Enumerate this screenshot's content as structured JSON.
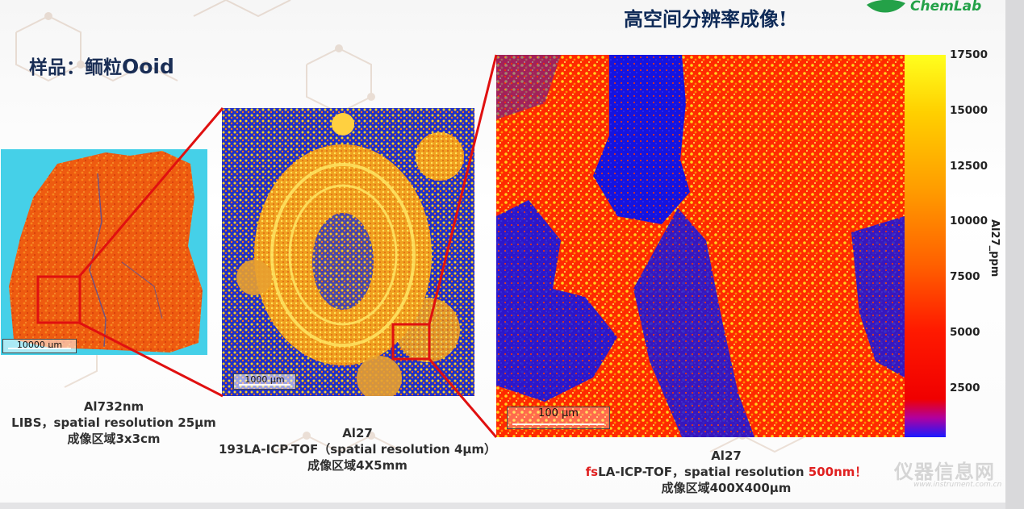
{
  "slide": {
    "title": "高空间分辨率成像!",
    "logo_text": "ChemLab",
    "sample_label_cn": "样品：鲕粒",
    "sample_label_en": "Ooid"
  },
  "panels": [
    {
      "scale_label": "10000 µm",
      "caption_lines": [
        "Al732nm",
        "LIBS，spatial resolution 25µm",
        "成像区域3x3cm"
      ]
    },
    {
      "scale_label": "1000 µm",
      "caption_lines": [
        "Al27",
        "193LA-ICP-TOF（spatial resolution 4µm）",
        "成像区域4X5mm"
      ]
    },
    {
      "scale_label": "100 µm",
      "caption_title": "Al27",
      "caption_prefix_red": "fs",
      "caption_middle": "LA-ICP-TOF，spatial resolution ",
      "caption_value_red": "500nm！",
      "caption_line3": "成像区域400X400µm"
    }
  ],
  "colorbar": {
    "label": "Al27_ppm",
    "ticks": [
      "17500",
      "15000",
      "12500",
      "10000",
      "7500",
      "5000",
      "2500"
    ],
    "colors": [
      "#ffff1e",
      "#ff9d00",
      "#ff1a00",
      "#1a1aff"
    ]
  },
  "accent_colors": {
    "zoom_lines": "#e01010",
    "title": "#0e2a57",
    "logo": "#24a148"
  },
  "watermark": {
    "text": "仪器信息网",
    "sub": "www.instrument.com.cn"
  }
}
